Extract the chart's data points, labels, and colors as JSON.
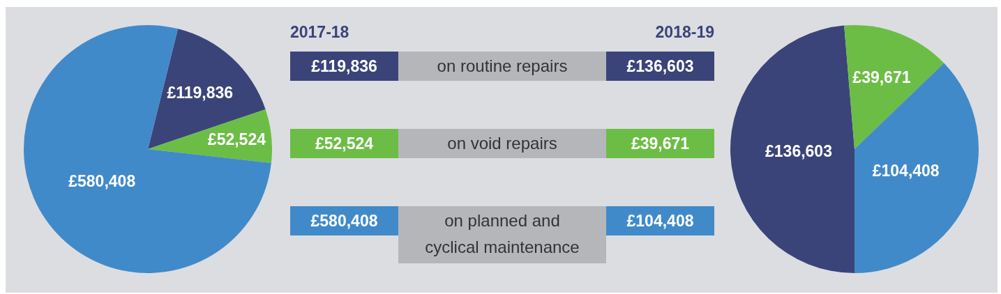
{
  "chart_data": [
    {
      "type": "pie",
      "title": "2017-18",
      "categories": [
        null,
        null,
        null
      ],
      "values": [
        119836,
        52524,
        580408
      ],
      "colors": [
        "#3a4479",
        "#6cbd45",
        "#418ac9"
      ],
      "value_labels": [
        "£119,836",
        "£52,524",
        "£580,408"
      ]
    },
    {
      "type": "other",
      "annotations": [
        "on routine repairs",
        "on void repairs",
        "on planned and cyclical maintenance"
      ]
    },
    {
      "type": "pie",
      "title": "2018-19",
      "categories": [
        null,
        null,
        null
      ],
      "values": [
        136603,
        39671,
        104408
      ],
      "colors": [
        "#3a4479",
        "#6cbd45",
        "#418ac9"
      ],
      "value_labels": [
        "£136,603",
        "£39,671",
        "£104,408"
      ]
    }
  ]
}
